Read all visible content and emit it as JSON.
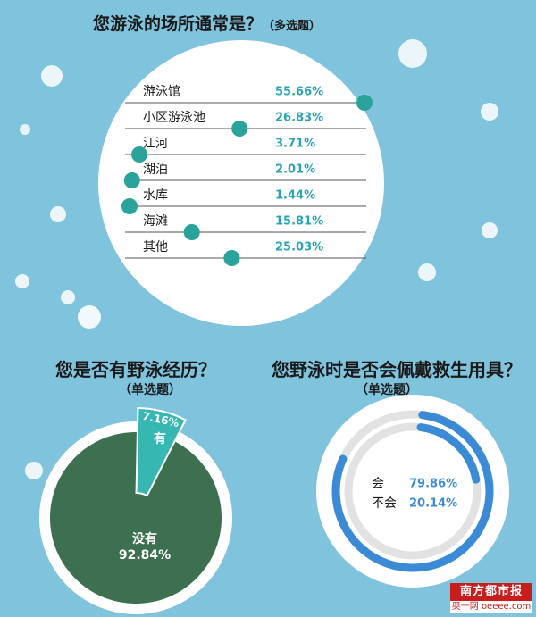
{
  "colors": {
    "background": "#7fc3dd",
    "teal_dot": "#2aa39b",
    "value_text": "#2aa3b4",
    "pie_main": "#3d7050",
    "pie_slice": "#37b7b2",
    "ring_blue": "#3b8ad6",
    "brand_red": "#c81d1d"
  },
  "chart_data": [
    {
      "type": "bar",
      "title": "您游泳的场所通常是？",
      "subtitle": "（多选题）",
      "categories": [
        "游泳馆",
        "小区游泳池",
        "江河",
        "湖泊",
        "水库",
        "海滩",
        "其他"
      ],
      "values": [
        55.66,
        26.83,
        3.71,
        2.01,
        1.44,
        15.81,
        25.03
      ],
      "value_labels": [
        "55.66%",
        "26.83%",
        "3.71%",
        "2.01%",
        "1.44%",
        "15.81%",
        "25.03%"
      ]
    },
    {
      "type": "pie",
      "title": "您是否有野泳经历？",
      "subtitle": "（单选题）",
      "slices": [
        {
          "label": "没有",
          "value": 92.84,
          "value_label": "92.84%"
        },
        {
          "label": "有",
          "value": 7.16,
          "value_label": "7.16%"
        }
      ]
    },
    {
      "type": "pie",
      "title": "您野泳时是否会佩戴救生用具？",
      "subtitle": "（单选题）",
      "slices": [
        {
          "label": "会",
          "value": 79.86,
          "value_label": "79.86%"
        },
        {
          "label": "不会",
          "value": 20.14,
          "value_label": "20.14%"
        }
      ]
    }
  ],
  "logo": {
    "brand": "南方都市报",
    "site": "奥一网 oeeee.com"
  }
}
